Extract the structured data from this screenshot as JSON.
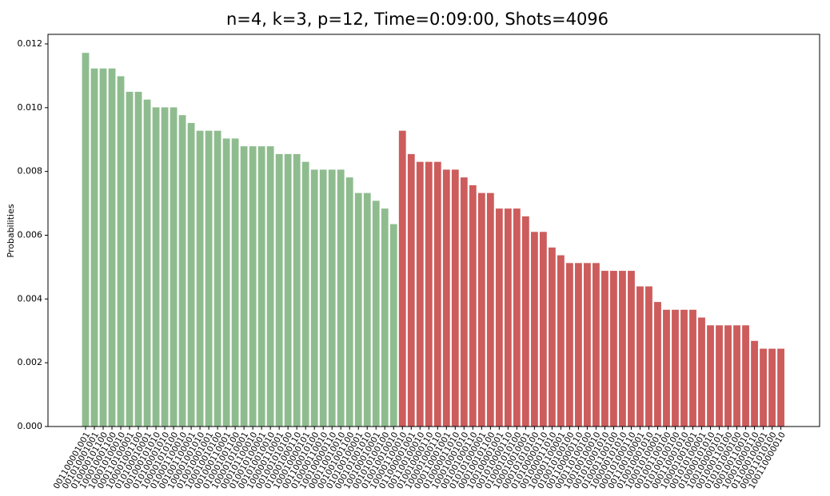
{
  "chart_data": {
    "type": "bar",
    "title": "n=4, k=3, p=12, Time=0:09:00, Shots=4096",
    "y_label": "Probabilities",
    "categories": [
      "001100001001",
      "001010001001",
      "010000101100",
      "100010001100",
      "100010100010",
      "000110100001",
      "100001001100",
      "010100010001",
      "001000101010",
      "010100001010",
      "100001010100",
      "010001100010",
      "001001100001",
      "100001001010",
      "010010001001",
      "100010010100",
      "001000110001",
      "010001001100",
      "100001010001",
      "000101100010",
      "010010100001",
      "001010010010",
      "100000110001",
      "001001010100",
      "010001000110",
      "100010000101",
      "001100010100",
      "010000110010",
      "100100000110",
      "000110010010",
      "001001001100",
      "010100100001",
      "000101001010",
      "100100010001",
      "001010100100",
      "010010010010",
      "100001100010",
      "011000001001",
      "001100100010",
      "010010000110",
      "100001000110",
      "000110001001",
      "010000011010",
      "100010001010",
      "001001000110",
      "010101000001",
      "000100101100",
      "100100001001",
      "001010000110",
      "010001010100",
      "100010010001",
      "000101010100",
      "010100000110",
      "001000011010",
      "100001100001",
      "010010100100",
      "001100000110",
      "000110100100",
      "100100100010",
      "001010001010",
      "010001100100",
      "100000101010",
      "000101000110",
      "001100100001",
      "010010001010",
      "100010100001",
      "001001100100",
      "010100100100",
      "000110001010",
      "100001001001",
      "001010100001",
      "010000101010",
      "100100000101",
      "001000110100",
      "010101000100",
      "000100110010",
      "100010000110",
      "011000100001",
      "000011010100",
      "100110000010"
    ],
    "values": [
      0.011719,
      0.01123,
      0.01123,
      0.01123,
      0.010986,
      0.010498,
      0.010498,
      0.010254,
      0.01001,
      0.01001,
      0.01001,
      0.009766,
      0.009521,
      0.009277,
      0.009277,
      0.009277,
      0.009033,
      0.009033,
      0.008789,
      0.008789,
      0.008789,
      0.008789,
      0.008545,
      0.008545,
      0.008545,
      0.008301,
      0.008057,
      0.008057,
      0.008057,
      0.008057,
      0.007813,
      0.007324,
      0.007324,
      0.00708,
      0.006836,
      0.006348,
      0.009277,
      0.008545,
      0.008301,
      0.008301,
      0.008301,
      0.008057,
      0.008057,
      0.007813,
      0.007568,
      0.007324,
      0.007324,
      0.006836,
      0.006836,
      0.006836,
      0.006592,
      0.006104,
      0.006104,
      0.005615,
      0.005371,
      0.005127,
      0.005127,
      0.005127,
      0.005127,
      0.004883,
      0.004883,
      0.004883,
      0.004883,
      0.004395,
      0.004395,
      0.003906,
      0.003662,
      0.003662,
      0.003662,
      0.003662,
      0.003418,
      0.003174,
      0.003174,
      0.003174,
      0.003174,
      0.003174,
      0.002686,
      0.002441,
      0.002441,
      0.002441
    ],
    "colors": [
      "#8fbc8f",
      "#8fbc8f",
      "#8fbc8f",
      "#8fbc8f",
      "#8fbc8f",
      "#8fbc8f",
      "#8fbc8f",
      "#8fbc8f",
      "#8fbc8f",
      "#8fbc8f",
      "#8fbc8f",
      "#8fbc8f",
      "#8fbc8f",
      "#8fbc8f",
      "#8fbc8f",
      "#8fbc8f",
      "#8fbc8f",
      "#8fbc8f",
      "#8fbc8f",
      "#8fbc8f",
      "#8fbc8f",
      "#8fbc8f",
      "#8fbc8f",
      "#8fbc8f",
      "#8fbc8f",
      "#8fbc8f",
      "#8fbc8f",
      "#8fbc8f",
      "#8fbc8f",
      "#8fbc8f",
      "#8fbc8f",
      "#8fbc8f",
      "#8fbc8f",
      "#8fbc8f",
      "#8fbc8f",
      "#8fbc8f",
      "#cd5c5c",
      "#cd5c5c",
      "#cd5c5c",
      "#cd5c5c",
      "#cd5c5c",
      "#cd5c5c",
      "#cd5c5c",
      "#cd5c5c",
      "#cd5c5c",
      "#cd5c5c",
      "#cd5c5c",
      "#cd5c5c",
      "#cd5c5c",
      "#cd5c5c",
      "#cd5c5c",
      "#cd5c5c",
      "#cd5c5c",
      "#cd5c5c",
      "#cd5c5c",
      "#cd5c5c",
      "#cd5c5c",
      "#cd5c5c",
      "#cd5c5c",
      "#cd5c5c",
      "#cd5c5c",
      "#cd5c5c",
      "#cd5c5c",
      "#cd5c5c",
      "#cd5c5c",
      "#cd5c5c",
      "#cd5c5c",
      "#cd5c5c",
      "#cd5c5c",
      "#cd5c5c",
      "#cd5c5c",
      "#cd5c5c",
      "#cd5c5c",
      "#cd5c5c",
      "#cd5c5c",
      "#cd5c5c",
      "#cd5c5c",
      "#cd5c5c",
      "#cd5c5c",
      "#cd5c5c"
    ],
    "ylim": [
      0,
      0.0123
    ],
    "yticks": [
      {
        "value": 0,
        "label": "0.000"
      },
      {
        "value": 0.002,
        "label": "0.002"
      },
      {
        "value": 0.004,
        "label": "0.004"
      },
      {
        "value": 0.006,
        "label": "0.006"
      },
      {
        "value": 0.008,
        "label": "0.008"
      },
      {
        "value": 0.01,
        "label": "0.010"
      },
      {
        "value": 0.012,
        "label": "0.012"
      }
    ],
    "grid": false
  }
}
